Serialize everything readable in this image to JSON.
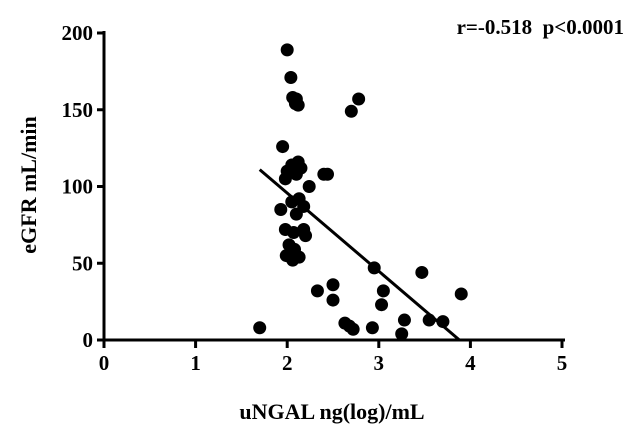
{
  "chart_data": {
    "type": "scatter",
    "title": "",
    "annotation": "r=-0.518  p<0.0001",
    "xlabel": "uNGAL ng(log)/mL",
    "ylabel": "eGFR mL/min",
    "xlim": [
      0,
      5
    ],
    "ylim": [
      0,
      200
    ],
    "x_ticks": [
      "0",
      "1",
      "2",
      "3",
      "4",
      "5"
    ],
    "y_ticks": [
      "0",
      "50",
      "100",
      "150",
      "200"
    ],
    "grid": false,
    "legend": "none",
    "marker_color": "#000000",
    "points": [
      {
        "x": 2.0,
        "y": 189
      },
      {
        "x": 2.04,
        "y": 171
      },
      {
        "x": 2.06,
        "y": 158
      },
      {
        "x": 2.1,
        "y": 157
      },
      {
        "x": 2.09,
        "y": 154
      },
      {
        "x": 2.12,
        "y": 153
      },
      {
        "x": 2.78,
        "y": 157
      },
      {
        "x": 2.7,
        "y": 149
      },
      {
        "x": 1.95,
        "y": 126
      },
      {
        "x": 2.12,
        "y": 116
      },
      {
        "x": 2.05,
        "y": 114
      },
      {
        "x": 2.0,
        "y": 110
      },
      {
        "x": 2.15,
        "y": 112
      },
      {
        "x": 1.98,
        "y": 105
      },
      {
        "x": 2.1,
        "y": 108
      },
      {
        "x": 2.4,
        "y": 108
      },
      {
        "x": 2.44,
        "y": 108
      },
      {
        "x": 2.24,
        "y": 100
      },
      {
        "x": 1.93,
        "y": 85
      },
      {
        "x": 2.05,
        "y": 90
      },
      {
        "x": 2.13,
        "y": 92
      },
      {
        "x": 2.18,
        "y": 87
      },
      {
        "x": 2.1,
        "y": 82
      },
      {
        "x": 1.98,
        "y": 72
      },
      {
        "x": 2.07,
        "y": 70
      },
      {
        "x": 2.18,
        "y": 72
      },
      {
        "x": 2.2,
        "y": 68
      },
      {
        "x": 2.02,
        "y": 62
      },
      {
        "x": 2.08,
        "y": 59
      },
      {
        "x": 1.99,
        "y": 55
      },
      {
        "x": 2.06,
        "y": 52
      },
      {
        "x": 2.13,
        "y": 54
      },
      {
        "x": 2.95,
        "y": 47
      },
      {
        "x": 3.47,
        "y": 44
      },
      {
        "x": 2.5,
        "y": 36
      },
      {
        "x": 2.33,
        "y": 32
      },
      {
        "x": 3.05,
        "y": 32
      },
      {
        "x": 3.9,
        "y": 30
      },
      {
        "x": 2.5,
        "y": 26
      },
      {
        "x": 3.03,
        "y": 23
      },
      {
        "x": 3.28,
        "y": 13
      },
      {
        "x": 3.55,
        "y": 13
      },
      {
        "x": 3.7,
        "y": 12
      },
      {
        "x": 2.63,
        "y": 11
      },
      {
        "x": 2.68,
        "y": 9
      },
      {
        "x": 2.72,
        "y": 7
      },
      {
        "x": 2.93,
        "y": 8
      },
      {
        "x": 1.7,
        "y": 8
      },
      {
        "x": 3.25,
        "y": 4
      }
    ],
    "fit_line": {
      "x": [
        1.7,
        3.88
      ],
      "y": [
        111,
        0
      ]
    }
  }
}
